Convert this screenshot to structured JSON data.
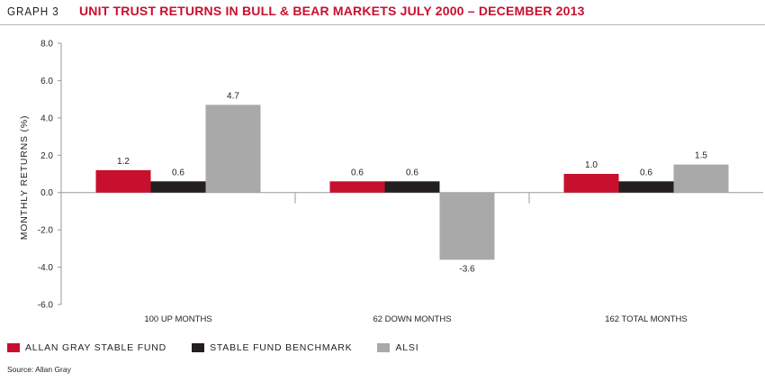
{
  "header": {
    "graph_number": "GRAPH 3",
    "title": "UNIT TRUST RETURNS IN BULL & BEAR MARKETS JULY 2000 – DECEMBER 2013"
  },
  "colors": {
    "title": "#c8102e",
    "series": [
      "#c8102e",
      "#231f20",
      "#a9a9a9"
    ]
  },
  "chart_data": {
    "type": "bar",
    "title": "UNIT TRUST RETURNS IN BULL & BEAR MARKETS JULY 2000 – DECEMBER 2013",
    "xlabel": "",
    "ylabel": "MONTHLY RETURNS (%)",
    "ylim": [
      -6.0,
      8.0
    ],
    "yticks": [
      8.0,
      6.0,
      4.0,
      2.0,
      0.0,
      -2.0,
      -4.0,
      -6.0
    ],
    "ytick_labels": [
      "8.0",
      "6.0",
      "4.0",
      "2.0",
      "0.0",
      "-2.0",
      "-4.0",
      "-6.0"
    ],
    "categories": [
      "100 UP MONTHS",
      "62 DOWN MONTHS",
      "162 TOTAL MONTHS"
    ],
    "series": [
      {
        "name": "ALLAN GRAY STABLE FUND",
        "values": [
          1.2,
          0.6,
          1.0
        ],
        "labels": [
          "1.2",
          "0.6",
          "1.0"
        ]
      },
      {
        "name": "STABLE FUND BENCHMARK",
        "values": [
          0.6,
          0.6,
          0.6
        ],
        "labels": [
          "0.6",
          "0.6",
          "0.6"
        ]
      },
      {
        "name": "ALSI",
        "values": [
          4.7,
          -3.6,
          1.5
        ],
        "labels": [
          "4.7",
          "-3.6",
          "1.5"
        ]
      }
    ],
    "grid": false,
    "legend_position": "bottom-left"
  },
  "source": "Source: Allan Gray"
}
